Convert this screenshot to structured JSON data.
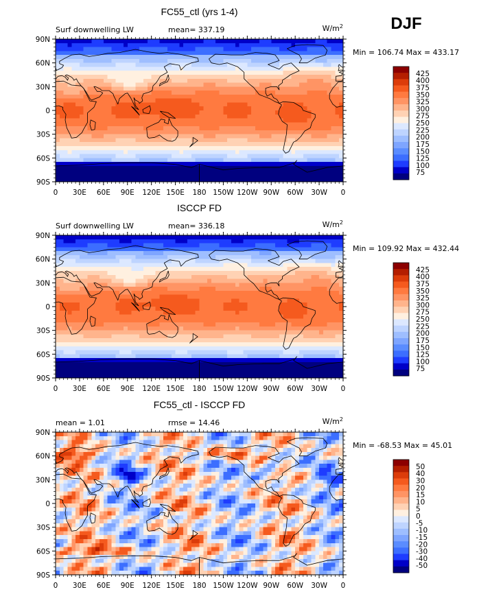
{
  "season": "DJF",
  "units_label": "W/m",
  "units_sup": "2",
  "x_ticks": [
    "0",
    "30E",
    "60E",
    "90E",
    "120E",
    "150E",
    "180",
    "150W",
    "120W",
    "90W",
    "60W",
    "30W",
    "0"
  ],
  "y_ticks": [
    "90N",
    "60N",
    "30N",
    "0",
    "30S",
    "60S",
    "90S"
  ],
  "colors": {
    "abs": [
      "#00007f",
      "#0000c8",
      "#1e3cff",
      "#3c6eff",
      "#5a8cff",
      "#7ea5ff",
      "#9ebeff",
      "#bed4ff",
      "#dce8ff",
      "#fff0e0",
      "#ffd2b4",
      "#ffb48c",
      "#ff9464",
      "#ff7a40",
      "#f55a1e",
      "#dc3c0a",
      "#b41e00",
      "#8c0000"
    ],
    "diff": [
      "#00007f",
      "#0000c8",
      "#1e3cff",
      "#3c6eff",
      "#5a8cff",
      "#7ea5ff",
      "#9ebeff",
      "#bed4ff",
      "#dce8ff",
      "#fff0e0",
      "#ffd2b4",
      "#ffb48c",
      "#ff9464",
      "#ff7a40",
      "#f55a1e",
      "#dc3c0a",
      "#b41e00",
      "#8c0000"
    ],
    "coast": "#000000"
  },
  "chart_data": [
    {
      "type": "heatmap",
      "title": "FC55_ctl (yrs 1-4)",
      "left_label": "Surf downwelling LW",
      "stat_label": "mean= 337.19",
      "minmax_text": "Min = 106.74 Max = 433.17",
      "xlim": [
        0,
        360
      ],
      "ylim": [
        -90,
        90
      ],
      "levels": [
        "425",
        "400",
        "375",
        "350",
        "325",
        "300",
        "275",
        "250",
        "225",
        "200",
        "175",
        "150",
        "125",
        "100",
        "75"
      ],
      "field": "model"
    },
    {
      "type": "heatmap",
      "title": "ISCCP FD",
      "left_label": "Surf downwelling LW",
      "stat_label": "mean= 336.18",
      "minmax_text": "Min = 109.92 Max = 432.44",
      "xlim": [
        0,
        360
      ],
      "ylim": [
        -90,
        90
      ],
      "levels": [
        "425",
        "400",
        "375",
        "350",
        "325",
        "300",
        "275",
        "250",
        "225",
        "200",
        "175",
        "150",
        "125",
        "100",
        "75"
      ],
      "field": "obs"
    },
    {
      "type": "heatmap",
      "title": "FC55_ctl - ISCCP FD",
      "left_label": "mean =    1.01",
      "stat_label": "rmse =  14.46",
      "minmax_text": "Min = -68.53 Max =  45.01",
      "xlim": [
        0,
        360
      ],
      "ylim": [
        -90,
        90
      ],
      "levels": [
        "50",
        "40",
        "30",
        "20",
        "15",
        "10",
        "5",
        "0",
        "-5",
        "-10",
        "-15",
        "-20",
        "-30",
        "-40",
        "-50"
      ],
      "field": "diff"
    }
  ]
}
